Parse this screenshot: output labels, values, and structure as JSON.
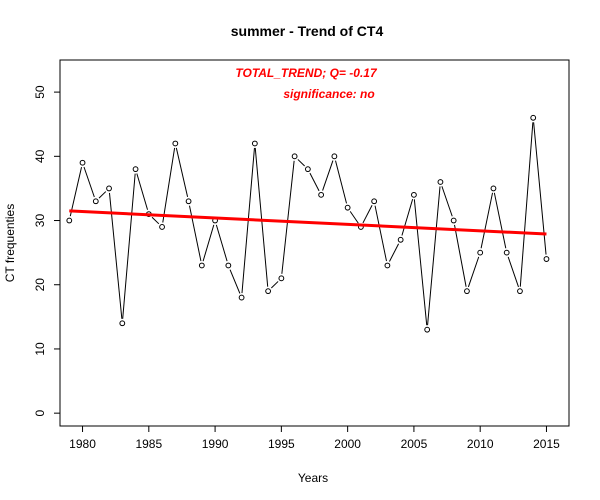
{
  "chart_data": {
    "type": "line",
    "title": "summer  -  Trend of CT4",
    "xlabel": "Years",
    "ylabel": "CT frequenties",
    "xlim": [
      1978.3,
      2016.7
    ],
    "ylim": [
      -2,
      55
    ],
    "x_ticks": [
      1980,
      1985,
      1990,
      1995,
      2000,
      2005,
      2010,
      2015
    ],
    "y_ticks": [
      0,
      10,
      20,
      30,
      40,
      50
    ],
    "grid": false,
    "series": [
      {
        "x": [
          1979,
          1980,
          1981,
          1982,
          1983,
          1984,
          1985,
          1986,
          1987,
          1988,
          1989,
          1990,
          1991,
          1992,
          1993,
          1994,
          1995,
          1996,
          1997,
          1998,
          1999,
          2000,
          2001,
          2002,
          2003,
          2004,
          2005,
          2006,
          2007,
          2008,
          2009,
          2010,
          2011,
          2012,
          2013,
          2014,
          2015
        ],
        "values": [
          30,
          39,
          33,
          35,
          14,
          38,
          31,
          29,
          42,
          33,
          23,
          30,
          23,
          18,
          42,
          19,
          21,
          40,
          38,
          34,
          40,
          32,
          29,
          33,
          23,
          27,
          34,
          13,
          36,
          30,
          19,
          25,
          35,
          25,
          19,
          46,
          24
        ],
        "color": "#000000",
        "marker": "open-circle"
      }
    ],
    "trend": {
      "x": [
        1979,
        2015
      ],
      "y": [
        31.5,
        27.9
      ],
      "color": "#ff0000"
    },
    "annotations": {
      "line1": "TOTAL_TREND;   Q=   -0.17",
      "line2": "significance:   no"
    }
  }
}
